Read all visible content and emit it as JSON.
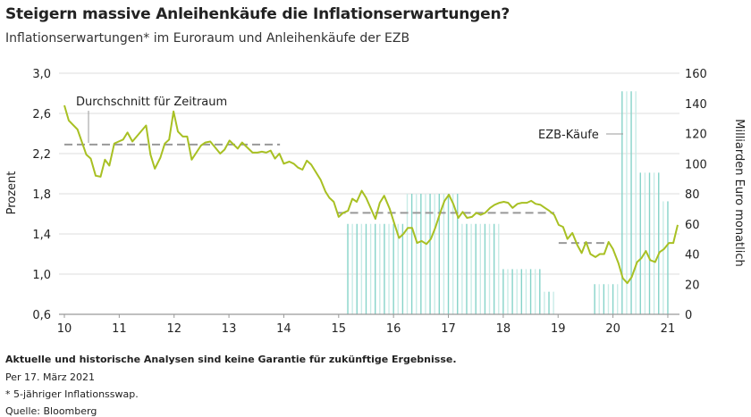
{
  "header": {
    "title": "Steigern massive Anleihenkäufe die Inflationserwartungen?",
    "subtitle": "Inflationserwartungen* im Euroraum und Anleihenkäufe der EZB"
  },
  "footer": {
    "disclaimer": "Aktuelle und historische Analysen sind keine Garantie für zukünftige Ergebnisse.",
    "date": "Per 17. März 2021",
    "footnote": "* 5-jähriger Inflationsswap.",
    "source": "Quelle: Bloomberg"
  },
  "chart_data": {
    "type": "line+bar",
    "ylabel_left": "Prozent",
    "ylabel_right": "Milliarden Euro monatlich",
    "x_ticks": [
      "10",
      "11",
      "12",
      "13",
      "14",
      "15",
      "16",
      "17",
      "18",
      "19",
      "20",
      "21"
    ],
    "x_range": [
      10,
      21.2
    ],
    "y_left_ticks": [
      "3,0",
      "2,6",
      "2,2",
      "1,8",
      "1,4",
      "1,0",
      "0,6"
    ],
    "y_left_range": [
      0.6,
      3.0
    ],
    "y_right_ticks": [
      "160",
      "140",
      "120",
      "100",
      "80",
      "60",
      "40",
      "20",
      "0"
    ],
    "y_right_range": [
      0,
      160
    ],
    "grid": true,
    "colors": {
      "line": "#a8c023",
      "bar_dark": "#86d3c9",
      "bar_light": "#c8ece7",
      "average": "#999999",
      "grid": "#dddddd"
    },
    "annotations": {
      "average_label": "Durchschnitt für Zeitraum",
      "purchases_label": "EZB-Käufe"
    },
    "series": [
      {
        "type": "line",
        "axis": "left",
        "points": [
          [
            10.0,
            2.68
          ],
          [
            10.08,
            2.53
          ],
          [
            10.24,
            2.44
          ],
          [
            10.4,
            2.19
          ],
          [
            10.48,
            2.15
          ],
          [
            10.57,
            1.98
          ],
          [
            10.66,
            1.97
          ],
          [
            10.74,
            2.14
          ],
          [
            10.82,
            2.08
          ],
          [
            10.91,
            2.3
          ],
          [
            10.99,
            2.32
          ],
          [
            11.07,
            2.34
          ],
          [
            11.15,
            2.41
          ],
          [
            11.24,
            2.32
          ],
          [
            11.49,
            2.48
          ],
          [
            11.57,
            2.19
          ],
          [
            11.65,
            2.05
          ],
          [
            11.75,
            2.16
          ],
          [
            11.83,
            2.3
          ],
          [
            11.91,
            2.34
          ],
          [
            11.99,
            2.62
          ],
          [
            12.07,
            2.42
          ],
          [
            12.16,
            2.37
          ],
          [
            12.24,
            2.37
          ],
          [
            12.32,
            2.14
          ],
          [
            12.49,
            2.28
          ],
          [
            12.57,
            2.31
          ],
          [
            12.66,
            2.32
          ],
          [
            12.84,
            2.2
          ],
          [
            12.92,
            2.24
          ],
          [
            13.01,
            2.33
          ],
          [
            13.16,
            2.25
          ],
          [
            13.24,
            2.31
          ],
          [
            13.43,
            2.21
          ],
          [
            13.52,
            2.21
          ],
          [
            13.6,
            2.22
          ],
          [
            13.68,
            2.21
          ],
          [
            13.76,
            2.23
          ],
          [
            13.84,
            2.15
          ],
          [
            13.92,
            2.2
          ],
          [
            14.0,
            2.1
          ],
          [
            14.1,
            2.12
          ],
          [
            14.18,
            2.1
          ],
          [
            14.26,
            2.06
          ],
          [
            14.34,
            2.04
          ],
          [
            14.42,
            2.13
          ],
          [
            14.5,
            2.09
          ],
          [
            14.67,
            1.94
          ],
          [
            14.76,
            1.82
          ],
          [
            14.83,
            1.76
          ],
          [
            14.91,
            1.72
          ],
          [
            15.0,
            1.57
          ],
          [
            15.08,
            1.61
          ],
          [
            15.17,
            1.63
          ],
          [
            15.25,
            1.75
          ],
          [
            15.33,
            1.72
          ],
          [
            15.42,
            1.83
          ],
          [
            15.5,
            1.76
          ],
          [
            15.59,
            1.65
          ],
          [
            15.67,
            1.55
          ],
          [
            15.75,
            1.71
          ],
          [
            15.83,
            1.78
          ],
          [
            15.93,
            1.65
          ],
          [
            16.01,
            1.51
          ],
          [
            16.1,
            1.36
          ],
          [
            16.18,
            1.4
          ],
          [
            16.26,
            1.46
          ],
          [
            16.34,
            1.46
          ],
          [
            16.43,
            1.31
          ],
          [
            16.51,
            1.33
          ],
          [
            16.6,
            1.3
          ],
          [
            16.68,
            1.35
          ],
          [
            16.76,
            1.46
          ],
          [
            16.85,
            1.61
          ],
          [
            16.93,
            1.73
          ],
          [
            17.01,
            1.79
          ],
          [
            17.09,
            1.7
          ],
          [
            17.18,
            1.56
          ],
          [
            17.26,
            1.62
          ],
          [
            17.34,
            1.56
          ],
          [
            17.43,
            1.57
          ],
          [
            17.51,
            1.61
          ],
          [
            17.59,
            1.59
          ],
          [
            17.67,
            1.61
          ],
          [
            17.76,
            1.66
          ],
          [
            17.84,
            1.69
          ],
          [
            17.93,
            1.71
          ],
          [
            18.01,
            1.72
          ],
          [
            18.09,
            1.71
          ],
          [
            18.17,
            1.66
          ],
          [
            18.26,
            1.7
          ],
          [
            18.34,
            1.71
          ],
          [
            18.43,
            1.71
          ],
          [
            18.51,
            1.73
          ],
          [
            18.59,
            1.7
          ],
          [
            18.68,
            1.69
          ],
          [
            18.76,
            1.66
          ],
          [
            18.84,
            1.63
          ],
          [
            18.93,
            1.59
          ],
          [
            19.01,
            1.49
          ],
          [
            19.09,
            1.47
          ],
          [
            19.17,
            1.35
          ],
          [
            19.26,
            1.41
          ],
          [
            19.35,
            1.29
          ],
          [
            19.43,
            1.21
          ],
          [
            19.51,
            1.32
          ],
          [
            19.59,
            1.2
          ],
          [
            19.68,
            1.17
          ],
          [
            19.76,
            1.2
          ],
          [
            19.84,
            1.2
          ],
          [
            19.92,
            1.32
          ],
          [
            20.0,
            1.25
          ],
          [
            20.1,
            1.11
          ],
          [
            20.18,
            0.96
          ],
          [
            20.26,
            0.91
          ],
          [
            20.34,
            0.97
          ],
          [
            20.44,
            1.12
          ],
          [
            20.52,
            1.16
          ],
          [
            20.6,
            1.23
          ],
          [
            20.68,
            1.14
          ],
          [
            20.77,
            1.12
          ],
          [
            20.85,
            1.22
          ],
          [
            20.93,
            1.25
          ],
          [
            21.02,
            1.31
          ],
          [
            21.1,
            1.31
          ],
          [
            21.18,
            1.49
          ]
        ]
      },
      {
        "type": "line-dashed",
        "axis": "left",
        "segments": [
          {
            "x": [
              10.0,
              13.93
            ],
            "y": 2.29
          },
          {
            "x": [
              14.98,
              18.93
            ],
            "y": 1.61
          },
          {
            "x": [
              19.01,
              19.92
            ],
            "y": 1.31
          }
        ]
      },
      {
        "type": "bar",
        "axis": "right",
        "periods": [
          {
            "from": [
              2015,
              3
            ],
            "to": [
              2016,
              3
            ],
            "value": 60
          },
          {
            "from": [
              2016,
              4
            ],
            "to": [
              2017,
              3
            ],
            "value": 80
          },
          {
            "from": [
              2017,
              4
            ],
            "to": [
              2017,
              12
            ],
            "value": 60
          },
          {
            "from": [
              2018,
              1
            ],
            "to": [
              2018,
              9
            ],
            "value": 30
          },
          {
            "from": [
              2018,
              10
            ],
            "to": [
              2018,
              12
            ],
            "value": 15
          },
          {
            "from": [
              2019,
              9
            ],
            "to": [
              2020,
              2
            ],
            "value": 20
          },
          {
            "from": [
              2020,
              3
            ],
            "to": [
              2020,
              6
            ],
            "value": 148
          },
          {
            "from": [
              2020,
              7
            ],
            "to": [
              2020,
              11
            ],
            "value": 94
          },
          {
            "from": [
              2020,
              12
            ],
            "to": [
              2021,
              1
            ],
            "value": 75
          }
        ]
      }
    ]
  }
}
